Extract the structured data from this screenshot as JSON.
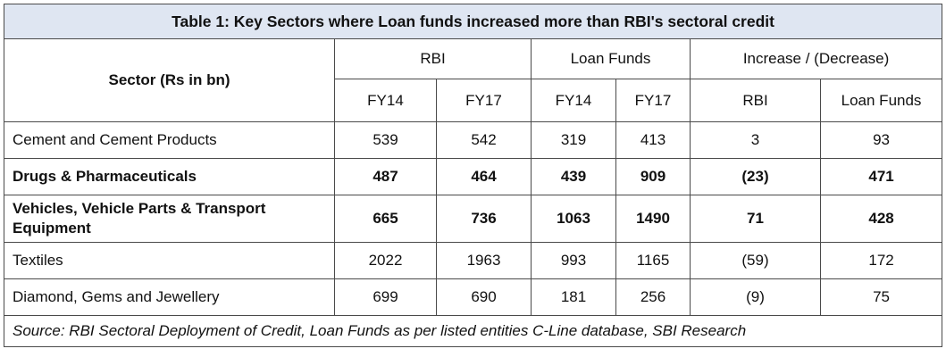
{
  "table": {
    "title": "Table 1: Key Sectors where Loan funds increased more than RBI's sectoral credit",
    "sector_header": "Sector (Rs in bn)",
    "groups": {
      "rbi": "RBI",
      "loan_funds": "Loan Funds",
      "change": "Increase / (Decrease)"
    },
    "subheaders": [
      "FY14",
      "FY17",
      "FY14",
      "FY17",
      "RBI",
      "Loan Funds"
    ],
    "rows": [
      {
        "sector": "Cement and Cement Products",
        "values": [
          "539",
          "542",
          "319",
          "413",
          "3",
          "93"
        ],
        "bold": false
      },
      {
        "sector": "Drugs & Pharmaceuticals",
        "values": [
          "487",
          "464",
          "439",
          "909",
          "(23)",
          "471"
        ],
        "bold": true
      },
      {
        "sector": "Vehicles, Vehicle Parts & Transport Equipment",
        "values": [
          "665",
          "736",
          "1063",
          "1490",
          "71",
          "428"
        ],
        "bold": true
      },
      {
        "sector": "Textiles",
        "values": [
          "2022",
          "1963",
          "993",
          "1165",
          "(59)",
          "172"
        ],
        "bold": false
      },
      {
        "sector": "Diamond, Gems and Jewellery",
        "values": [
          "699",
          "690",
          "181",
          "256",
          "(9)",
          "75"
        ],
        "bold": false
      }
    ],
    "source": "Source: RBI Sectoral Deployment of Credit, Loan Funds as per listed entities C-Line database, SBI Research",
    "title_bg": "#dfe6f2"
  }
}
